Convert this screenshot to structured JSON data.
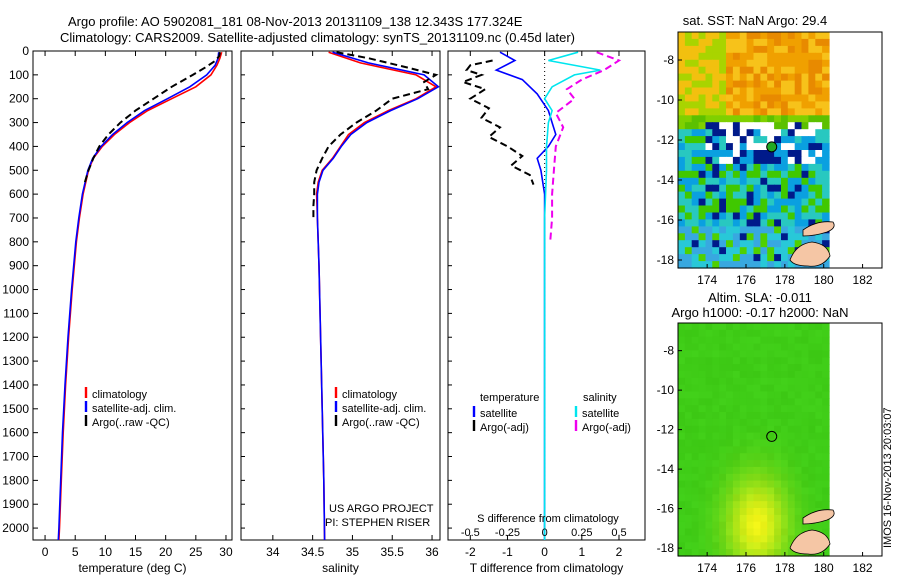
{
  "header": {
    "line1": "Argo profile: AO 5902081_181 08-Nov-2013 20131109_138 12.343S 177.324E",
    "line2": "Climatology: CARS2009. Satellite-adjusted climatology: synTS_20131109.nc (0.45d later)"
  },
  "credit": {
    "project": "US ARGO PROJECT",
    "pi": "PI: STEPHEN RISER"
  },
  "footer_stamp": "IMOS 16-Nov-2013 20:03:07",
  "colors": {
    "climatology": "#ff0000",
    "satellite": "#0000ff",
    "argo": "#000000",
    "sal_satellite": "#00e5ee",
    "sal_argo": "#ee00ee",
    "ocean_bg": "#ffffff"
  },
  "chart_data": [
    {
      "id": "temperature",
      "type": "line",
      "xlabel": "temperature (deg C)",
      "xlim": [
        -2,
        31
      ],
      "ylim": [
        0,
        2050
      ],
      "xticks": [
        0,
        5,
        10,
        15,
        20,
        25,
        30
      ],
      "yticks": [
        0,
        100,
        200,
        300,
        400,
        500,
        600,
        700,
        800,
        900,
        1000,
        1100,
        1200,
        1300,
        1400,
        1500,
        1600,
        1700,
        1800,
        1900,
        2000
      ],
      "legend": [
        "climatology",
        "satellite-adj. clim.",
        "Argo(..raw -QC)"
      ],
      "series": [
        {
          "name": "climatology",
          "color": "#ff0000",
          "dash": "",
          "depth": [
            5,
            30,
            60,
            100,
            150,
            200,
            250,
            300,
            350,
            400,
            450,
            500,
            600,
            700,
            800,
            1000,
            1200,
            1400,
            1600,
            1800,
            2000,
            2050
          ],
          "values": [
            29.3,
            29.0,
            28.5,
            27.5,
            25.0,
            21.0,
            17.0,
            14.0,
            11.5,
            9.5,
            8.0,
            7.2,
            6.3,
            5.7,
            5.2,
            4.5,
            3.9,
            3.4,
            3.0,
            2.7,
            2.4,
            2.3
          ]
        },
        {
          "name": "satellite-adj. clim.",
          "color": "#0000ff",
          "dash": "",
          "depth": [
            5,
            30,
            60,
            100,
            150,
            200,
            250,
            300,
            350,
            400,
            450,
            500,
            600,
            700,
            800,
            1000,
            1200,
            1400,
            1600,
            1800,
            2000,
            2050
          ],
          "values": [
            28.8,
            28.7,
            28.2,
            26.8,
            24.0,
            20.3,
            16.5,
            13.6,
            11.2,
            9.3,
            7.9,
            7.1,
            6.2,
            5.6,
            5.1,
            4.4,
            3.8,
            3.3,
            2.9,
            2.6,
            2.3,
            2.2
          ]
        },
        {
          "name": "Argo(..raw -QC)",
          "color": "#000000",
          "dash": "7,4",
          "depth": [
            5,
            20,
            40,
            70,
            100,
            150,
            200,
            250,
            300,
            350,
            400,
            450,
            500,
            550
          ],
          "values": [
            29.0,
            28.9,
            28.3,
            26.5,
            24.5,
            21.0,
            18.0,
            15.0,
            12.5,
            10.5,
            9.0,
            8.0,
            7.2,
            6.6
          ]
        }
      ]
    },
    {
      "id": "salinity",
      "type": "line",
      "xlabel": "salinity",
      "xlim": [
        33.6,
        36.1
      ],
      "ylim": [
        0,
        2050
      ],
      "xticks": [
        34,
        34.5,
        35,
        35.5,
        36
      ],
      "legend": [
        "climatology",
        "satellite-adj. clim.",
        "Argo(..raw -QC)"
      ],
      "series": [
        {
          "name": "climatology",
          "color": "#ff0000",
          "dash": "",
          "depth": [
            5,
            50,
            100,
            150,
            200,
            250,
            300,
            350,
            400,
            450,
            500,
            550,
            600,
            700,
            900,
            1200,
            1500,
            1800,
            2050
          ],
          "values": [
            34.7,
            35.1,
            35.8,
            36.05,
            35.8,
            35.45,
            35.15,
            34.95,
            34.85,
            34.75,
            34.62,
            34.57,
            34.55,
            34.56,
            34.58,
            34.6,
            34.62,
            34.64,
            34.65
          ]
        },
        {
          "name": "satellite-adj. clim.",
          "color": "#0000ff",
          "dash": "",
          "depth": [
            5,
            50,
            100,
            150,
            200,
            250,
            300,
            350,
            400,
            450,
            500,
            550,
            600,
            700,
            900,
            1200,
            1500,
            1800,
            2050
          ],
          "values": [
            34.75,
            35.2,
            35.9,
            36.08,
            35.82,
            35.48,
            35.18,
            34.98,
            34.86,
            34.76,
            34.63,
            34.58,
            34.56,
            34.56,
            34.58,
            34.6,
            34.62,
            34.64,
            34.65
          ]
        },
        {
          "name": "Argo(..raw -QC)",
          "color": "#000000",
          "dash": "7,4",
          "depth": [
            5,
            30,
            70,
            100,
            130,
            160,
            200,
            250,
            300,
            350,
            400,
            450,
            500,
            550,
            600,
            650,
            700
          ],
          "values": [
            34.8,
            35.2,
            35.7,
            36.05,
            35.9,
            35.95,
            35.5,
            35.3,
            35.05,
            34.85,
            34.7,
            34.62,
            34.55,
            34.52,
            34.52,
            34.51,
            34.51
          ]
        }
      ]
    },
    {
      "id": "differences",
      "type": "line",
      "xlabel": "T difference from climatology",
      "xlabel_top": "S difference from climatology",
      "xlim": [
        -2.6,
        2.7
      ],
      "ylim": [
        0,
        2050
      ],
      "xticks": [
        -2,
        -1,
        0,
        1,
        2
      ],
      "xticks_s": [
        "-0.5",
        "-0.25",
        "0",
        "0.25",
        "0.5"
      ],
      "legend_temperature_header": "temperature",
      "legend_salinity_header": "salinity",
      "legend": [
        "satellite",
        "Argo(-adj)",
        "satellite",
        "Argo(-adj)"
      ],
      "series": [
        {
          "name": "satellite",
          "color": "#0000ff",
          "dash": "",
          "depth": [
            5,
            40,
            80,
            120,
            180,
            250,
            300,
            350,
            400,
            450,
            500,
            600,
            700,
            1000,
            1500,
            2050
          ],
          "values": [
            -1.2,
            -0.8,
            -1.3,
            -0.6,
            -0.2,
            0.1,
            0.2,
            0.3,
            0.1,
            -0.2,
            -0.1,
            0.0,
            0.0,
            0.0,
            0.0,
            0.0
          ]
        },
        {
          "name": "Argo(-adj)",
          "color": "#000000",
          "dash": "7,4",
          "depth": [
            40,
            60,
            80,
            100,
            130,
            160,
            200,
            240,
            280,
            320,
            360,
            400,
            440,
            480,
            520,
            560
          ],
          "values": [
            -1.4,
            -2.0,
            -2.1,
            -1.7,
            -2.2,
            -1.6,
            -2.0,
            -1.5,
            -1.7,
            -1.2,
            -1.5,
            -1.0,
            -0.6,
            -0.9,
            -0.4,
            -0.3
          ]
        },
        {
          "name": "satellite",
          "color": "#00e5ee",
          "dash": "",
          "depth": [
            5,
            40,
            80,
            100,
            150,
            200,
            250,
            300,
            400,
            500,
            700,
            1000,
            1500,
            2050
          ],
          "values": [
            0.9,
            0.1,
            1.5,
            0.8,
            0.2,
            0.0,
            0.2,
            0.1,
            0.05,
            0.05,
            0.0,
            0.0,
            0.0,
            0.0
          ]
        },
        {
          "name": "Argo(-adj)",
          "color": "#ee00ee",
          "dash": "7,4",
          "depth": [
            5,
            40,
            80,
            120,
            160,
            200,
            260,
            320,
            400,
            500,
            600,
            700,
            800
          ],
          "values": [
            1.4,
            2.0,
            1.6,
            1.0,
            0.6,
            0.8,
            0.3,
            0.5,
            0.3,
            0.25,
            0.2,
            0.2,
            0.15
          ]
        }
      ]
    },
    {
      "id": "map_sst",
      "type": "heatmap",
      "title": "sat. SST: NaN Argo: 29.4",
      "xticks": [
        174,
        176,
        178,
        180,
        182
      ],
      "yticks": [
        -8,
        -10,
        -12,
        -14,
        -16,
        -18
      ],
      "xlim": [
        172.5,
        183
      ],
      "ylim": [
        -18.4,
        -6.6
      ],
      "argo_position": [
        177.324,
        -12.343
      ],
      "data_right_edge": 180
    },
    {
      "id": "map_sla",
      "type": "heatmap",
      "title_line1": "Altim. SLA: -0.011",
      "title_line2": "Argo h1000: -0.17 h2000: NaN",
      "xticks": [
        174,
        176,
        178,
        180,
        182
      ],
      "yticks": [
        -8,
        -10,
        -12,
        -14,
        -16,
        -18
      ],
      "xlim": [
        172.5,
        183
      ],
      "ylim": [
        -18.4,
        -6.6
      ],
      "argo_position": [
        177.324,
        -12.343
      ],
      "data_right_edge": 180
    }
  ]
}
